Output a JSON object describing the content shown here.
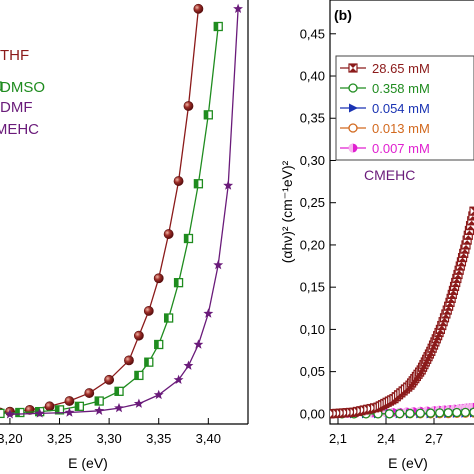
{
  "chart_data": [
    {
      "panel": "a",
      "type": "line",
      "xlabel": "E (eV)",
      "x_ticks": [
        "3,20",
        "3,25",
        "3,30",
        "3,35",
        "3,40"
      ],
      "xlim": [
        3.19,
        3.44
      ],
      "ylim": [
        -0.01,
        0.47
      ],
      "grid": false,
      "legend_position": "top-left",
      "legend_labels": [
        "THF",
        "DMSO",
        "DMF"
      ],
      "annotation": "CMEHC",
      "series": [
        {
          "name": "THF",
          "color": "#8b1a1a",
          "marker": "sphere",
          "x": [
            3.19,
            3.2,
            3.22,
            3.24,
            3.26,
            3.28,
            3.3,
            3.32,
            3.33,
            3.34,
            3.35,
            3.36,
            3.37,
            3.38,
            3.39
          ],
          "y": [
            0.003,
            0.004,
            0.006,
            0.01,
            0.016,
            0.025,
            0.04,
            0.062,
            0.09,
            0.118,
            0.155,
            0.205,
            0.265,
            0.35,
            0.46
          ]
        },
        {
          "name": "DMSO",
          "color": "#1f8c1f",
          "marker": "half-filled-square",
          "x": [
            3.19,
            3.21,
            3.23,
            3.25,
            3.27,
            3.29,
            3.31,
            3.33,
            3.34,
            3.35,
            3.36,
            3.37,
            3.38,
            3.39,
            3.4,
            3.41
          ],
          "y": [
            0.002,
            0.003,
            0.004,
            0.006,
            0.01,
            0.016,
            0.027,
            0.045,
            0.06,
            0.08,
            0.11,
            0.15,
            0.2,
            0.262,
            0.34,
            0.44
          ]
        },
        {
          "name": "DMF",
          "color": "#6a1b7a",
          "marker": "star",
          "x": [
            3.2,
            3.23,
            3.26,
            3.29,
            3.31,
            3.33,
            3.35,
            3.37,
            3.38,
            3.39,
            3.4,
            3.41,
            3.42,
            3.43
          ],
          "y": [
            0.001,
            0.002,
            0.003,
            0.005,
            0.008,
            0.013,
            0.023,
            0.04,
            0.056,
            0.08,
            0.115,
            0.17,
            0.26,
            0.46
          ]
        }
      ]
    },
    {
      "panel": "b",
      "panel_label": "(b)",
      "type": "line",
      "ylabel": "(αhν)² (cm⁻¹eV)²",
      "xlabel": "E (eV)",
      "x_ticks": [
        "2,1",
        "2,4",
        "2,7"
      ],
      "y_ticks": [
        "0,00",
        "0,05",
        "0,10",
        "0,15",
        "0,20",
        "0,25",
        "0,30",
        "0,35",
        "0,40",
        "0,45"
      ],
      "xlim": [
        2.05,
        2.95
      ],
      "ylim": [
        -0.012,
        0.49
      ],
      "grid": false,
      "legend_position": "top-left",
      "annotation": "CMEHC",
      "series": [
        {
          "name": "28.65 mM",
          "color": "#8b1a1a",
          "marker": "hourglass-square",
          "x": [
            2.05,
            2.2,
            2.35,
            2.45,
            2.55,
            2.62,
            2.68,
            2.74,
            2.8,
            2.85,
            2.9,
            2.95
          ],
          "y": [
            0.0,
            0.002,
            0.008,
            0.018,
            0.034,
            0.052,
            0.074,
            0.1,
            0.132,
            0.165,
            0.2,
            0.24
          ]
        },
        {
          "name": "0.358 mM",
          "color": "#1f8c1f",
          "marker": "open-circle",
          "x": [
            2.05,
            2.4,
            2.7,
            2.95
          ],
          "y": [
            0.0,
            0.0,
            0.001,
            0.002
          ]
        },
        {
          "name": "0.054 mM",
          "color": "#1a33b3",
          "marker": "right-triangle",
          "x": [
            2.05,
            2.4,
            2.7,
            2.95
          ],
          "y": [
            0.0,
            0.0,
            0.0,
            0.001
          ]
        },
        {
          "name": "0.013 mM",
          "color": "#d2691e",
          "marker": "open-circle",
          "x": [
            2.05,
            2.4,
            2.7,
            2.95
          ],
          "y": [
            0.0,
            0.0,
            0.0,
            0.001
          ]
        },
        {
          "name": "0.007 mM",
          "color": "#e020d0",
          "marker": "half-filled-circle",
          "x": [
            2.05,
            2.3,
            2.5,
            2.7,
            2.85,
            2.95
          ],
          "y": [
            0.0,
            0.001,
            0.002,
            0.004,
            0.006,
            0.008
          ]
        }
      ]
    }
  ]
}
